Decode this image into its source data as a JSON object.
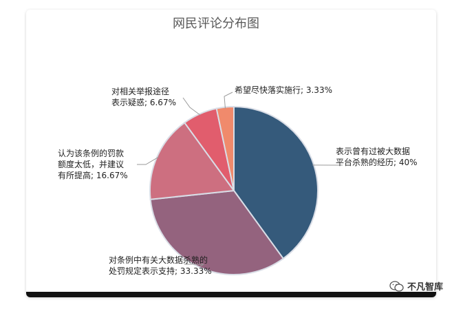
{
  "chart_data": {
    "type": "pie",
    "title": "网民评论分布图",
    "slices": [
      {
        "label_lines": [
          "表示曾有过被大数据",
          "平台杀熟的经历; 40%"
        ],
        "value": 40,
        "color": "#355a7b"
      },
      {
        "label_lines": [
          "对条例中有关大数据杀熟的",
          "处罚规定表示支持; 33.33%"
        ],
        "value": 33.33,
        "color": "#94637e"
      },
      {
        "label_lines": [
          "认为该条例的罚款",
          "额度太低，并建议",
          "有所提高; 16.67%"
        ],
        "value": 16.67,
        "color": "#cd6f80"
      },
      {
        "label_lines": [
          "对相关举报途径",
          "表示疑惑; 6.67%"
        ],
        "value": 6.67,
        "color": "#e15d6d"
      },
      {
        "label_lines": [
          "希望尽快落实施行; 3.33%"
        ],
        "value": 3.33,
        "color": "#f08a6c"
      }
    ]
  },
  "watermark": {
    "text": "不凡智库",
    "icon": "wechat-icon"
  }
}
